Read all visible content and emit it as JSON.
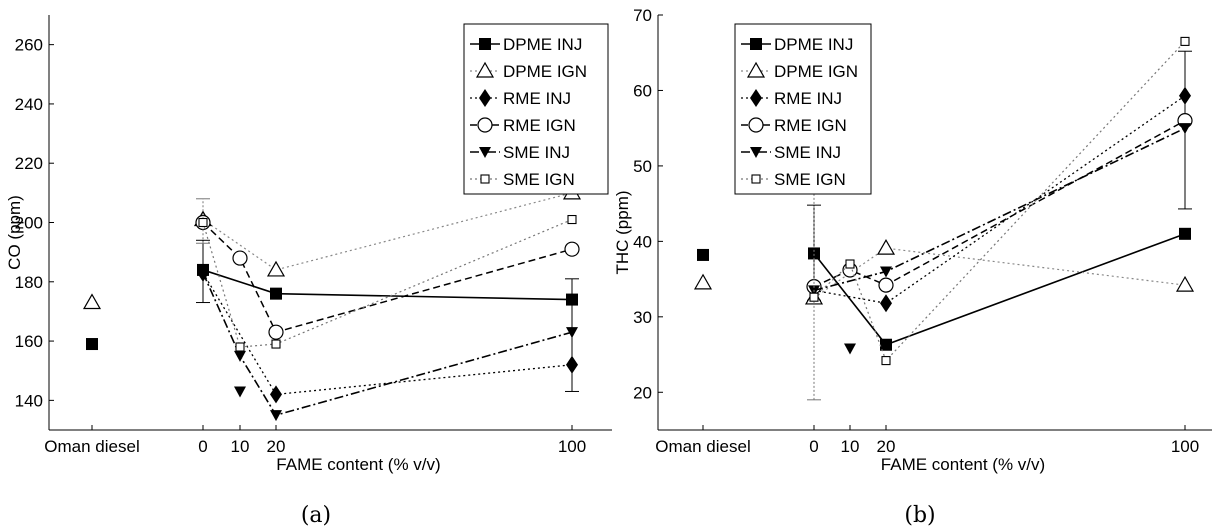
{
  "chart_data": [
    {
      "type": "line",
      "panel_label": "(a)",
      "xlabel": "FAME content (% v/v)",
      "ylabel": "CO (ppm)",
      "ylim": [
        130,
        270
      ],
      "yticks": [
        140,
        160,
        180,
        200,
        220,
        240,
        260
      ],
      "xtick_labels": [
        "Oman diesel",
        "0",
        "10",
        "20",
        "100"
      ],
      "legend_position": "top-right",
      "series": [
        {
          "name": "DPME INJ",
          "diesel": 159,
          "values": [
            [
              0,
              184
            ],
            [
              20,
              176
            ],
            [
              100,
              174
            ]
          ],
          "errorbars": [
            [
              0,
              173,
              194
            ],
            [
              100,
              143,
              181
            ]
          ]
        },
        {
          "name": "DPME IGN",
          "diesel": 173,
          "values": [
            [
              0,
              201
            ],
            [
              20,
              184
            ],
            [
              100,
              210
            ]
          ]
        },
        {
          "name": "RME INJ",
          "diesel": null,
          "values": [
            [
              0,
              183
            ],
            [
              20,
              142
            ],
            [
              100,
              152
            ]
          ]
        },
        {
          "name": "RME IGN",
          "diesel": null,
          "values": [
            [
              0,
              200
            ],
            [
              10,
              188
            ],
            [
              20,
              163
            ],
            [
              100,
              191
            ]
          ]
        },
        {
          "name": "SME INJ",
          "diesel": null,
          "values": [
            [
              0,
              183
            ],
            [
              10,
              155
            ],
            [
              20,
              135
            ],
            [
              100,
              163
            ]
          ],
          "extra_points": [
            [
              10,
              143
            ]
          ]
        },
        {
          "name": "SME IGN",
          "diesel": null,
          "values": [
            [
              0,
              200
            ],
            [
              10,
              158
            ],
            [
              20,
              159
            ],
            [
              100,
              201
            ]
          ],
          "errorbars": [
            [
              0,
              193,
              208
            ]
          ]
        }
      ]
    },
    {
      "type": "line",
      "panel_label": "(b)",
      "xlabel": "FAME content (% v/v)",
      "ylabel": "THC (ppm)",
      "ylim": [
        15,
        70
      ],
      "yticks": [
        20,
        30,
        40,
        50,
        60,
        70
      ],
      "xtick_labels": [
        "Oman diesel",
        "0",
        "10",
        "20",
        "100"
      ],
      "legend_position": "top-left",
      "series": [
        {
          "name": "DPME INJ",
          "diesel": 38.2,
          "values": [
            [
              0,
              38.4
            ],
            [
              20,
              26.3
            ],
            [
              100,
              41
            ]
          ],
          "errorbars": [
            [
              0,
              32.2,
              44.8
            ]
          ]
        },
        {
          "name": "DPME IGN",
          "diesel": 34.5,
          "values": [
            [
              0,
              32.5
            ],
            [
              20,
              39.1
            ],
            [
              100,
              34.2
            ]
          ]
        },
        {
          "name": "RME INJ",
          "diesel": null,
          "values": [
            [
              0,
              33.5
            ],
            [
              20,
              31.8
            ],
            [
              100,
              59.3
            ]
          ],
          "errorbars": [
            [
              100,
              44.3,
              65.2
            ]
          ]
        },
        {
          "name": "RME IGN",
          "diesel": null,
          "values": [
            [
              0,
              34
            ],
            [
              10,
              36.2
            ],
            [
              20,
              34.2
            ],
            [
              100,
              56
            ]
          ]
        },
        {
          "name": "SME INJ",
          "diesel": null,
          "values": [
            [
              0,
              33.5
            ],
            [
              20,
              36
            ],
            [
              100,
              55
            ]
          ],
          "extra_points": [
            [
              10,
              25.8
            ]
          ]
        },
        {
          "name": "SME IGN",
          "diesel": null,
          "values": [
            [
              0,
              32.6
            ],
            [
              10,
              37
            ],
            [
              20,
              24.2
            ],
            [
              100,
              66.5
            ]
          ],
          "errorbars": [
            [
              0,
              19,
              46.3
            ]
          ]
        }
      ]
    }
  ]
}
